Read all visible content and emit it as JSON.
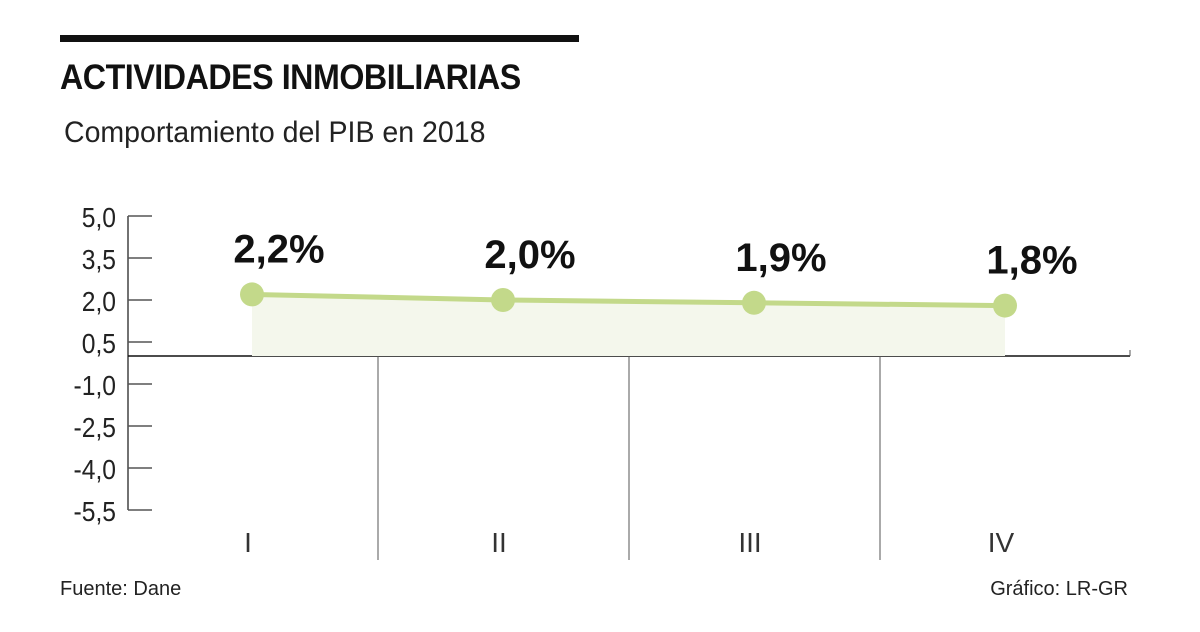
{
  "header": {
    "title": "ACTIVIDADES INMOBILIARIAS",
    "subtitle": "Comportamiento del PIB en 2018"
  },
  "footer": {
    "source": "Fuente: Dane",
    "credit": "Gráfico: LR-GR"
  },
  "chart_data": {
    "type": "line",
    "title": "ACTIVIDADES INMOBILIARIAS",
    "subtitle": "Comportamiento del PIB en 2018",
    "categories": [
      "I",
      "II",
      "III",
      "IV"
    ],
    "values": [
      2.2,
      2.0,
      1.9,
      1.8
    ],
    "data_labels": [
      "2,2%",
      "2,0%",
      "1,9%",
      "1,8%"
    ],
    "yticks": [
      5.0,
      3.5,
      2.0,
      0.5,
      -1.0,
      -2.5,
      -4.0,
      -5.5
    ],
    "ytick_labels": [
      "5,0",
      "3,5",
      "2,0",
      "0,5",
      "-1,0",
      "-2,5",
      "-4,0",
      "-5,5"
    ],
    "ylim": [
      -5.5,
      5.0
    ],
    "xlabel": "",
    "ylabel": "",
    "colors": {
      "line": "#c3d98a",
      "area": "#f4f7ec",
      "axis": "#111111"
    }
  }
}
